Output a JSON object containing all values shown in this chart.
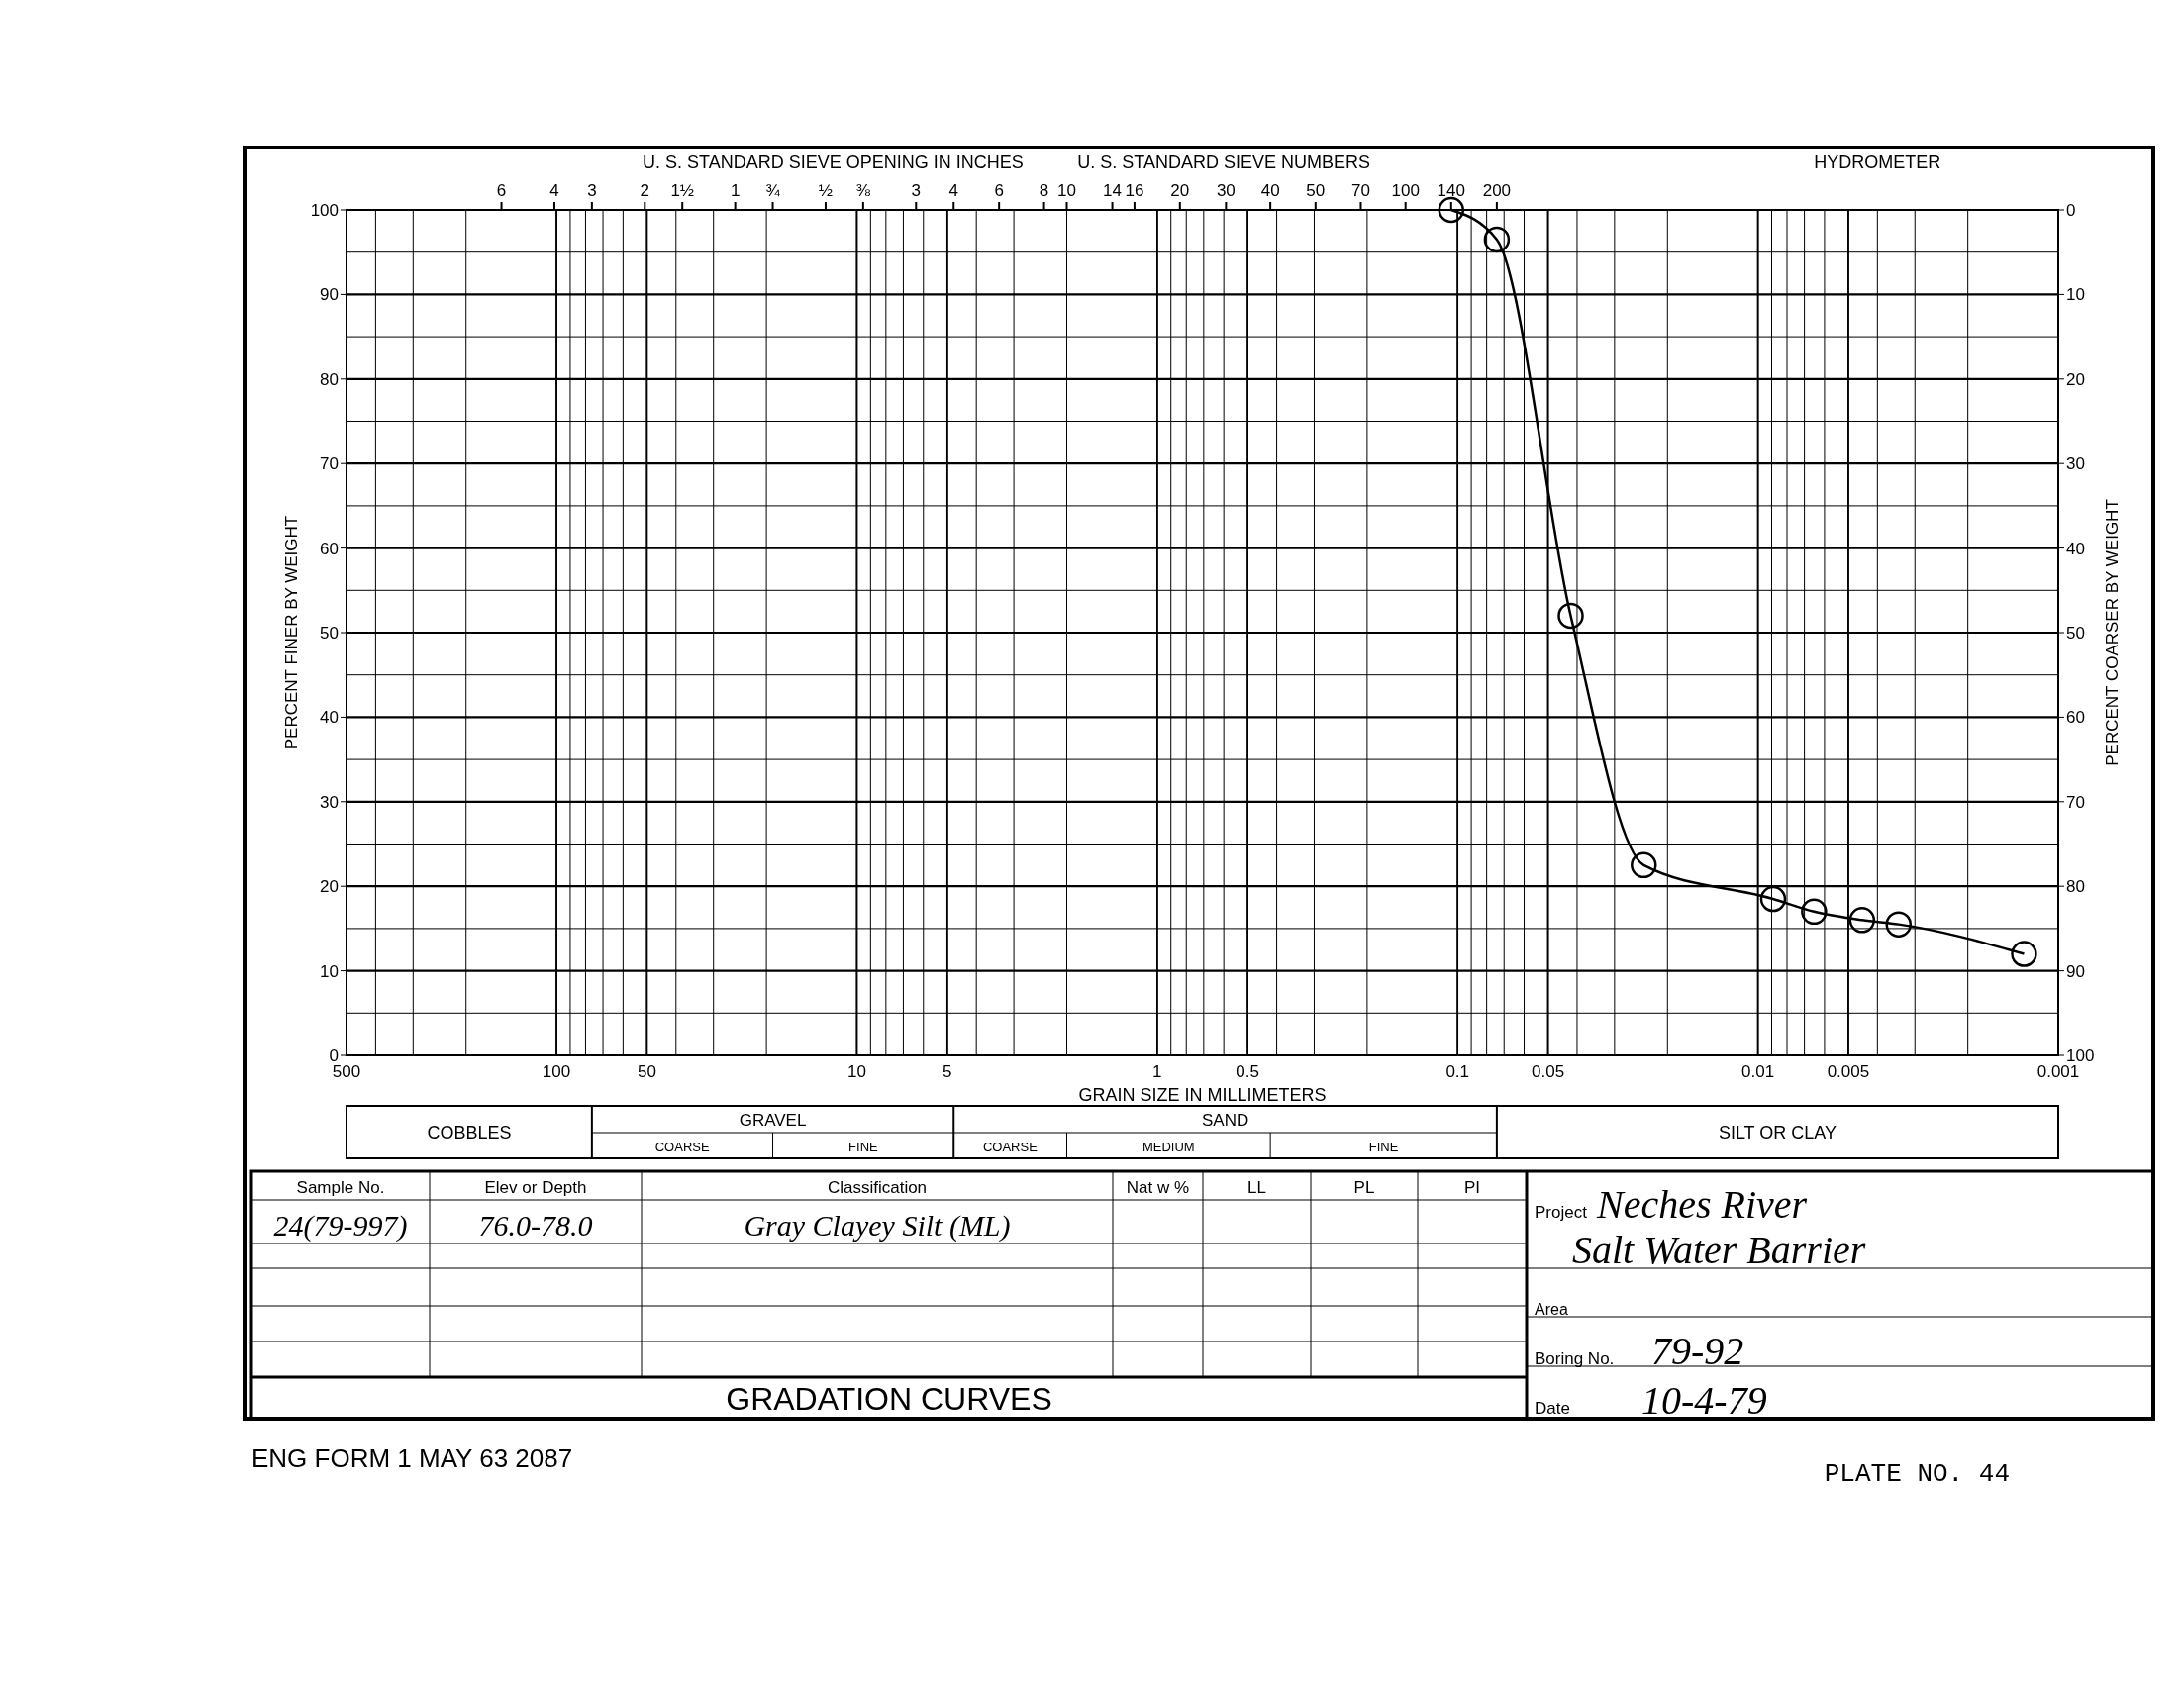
{
  "chart_data": {
    "type": "line",
    "xlabel": "GRAIN SIZE IN MILLIMETERS",
    "ylabel": "PERCENT FINER BY WEIGHT",
    "y2label": "PERCENT COARSER BY WEIGHT",
    "log": "x",
    "xlim": [
      500,
      0.001
    ],
    "xticks": [
      500,
      100,
      50,
      10,
      5,
      1,
      0.5,
      0.1,
      0.05,
      0.01,
      0.005,
      0.001
    ],
    "ylim": [
      0,
      100
    ],
    "yticks": [
      0,
      10,
      20,
      30,
      40,
      50,
      60,
      70,
      80,
      90,
      100
    ],
    "y2lim": [
      100,
      0
    ],
    "y2ticks": [
      0,
      10,
      20,
      30,
      40,
      50,
      60,
      70,
      80,
      90,
      100
    ],
    "grid": true,
    "marker": "circle",
    "line_style": "solid",
    "series": [
      {
        "color": "#000000",
        "x": [
          0.105,
          0.074,
          0.042,
          0.024,
          0.0089,
          0.0065,
          0.0045,
          0.0034,
          0.0013
        ],
        "values": [
          100,
          96.5,
          52,
          22.5,
          18.5,
          17,
          16,
          15.5,
          12
        ]
      }
    ],
    "annotations": [
      "U. S. STANDARD SIEVE OPENING IN INCHES",
      "U. S. STANDARD SIEVE NUMBERS",
      "HYDROMETER",
      "COBBLES",
      "GRAVEL",
      "COARSE",
      "FINE",
      "SAND",
      "COARSE",
      "MEDIUM",
      "FINE",
      "SILT OR CLAY",
      "Sample No.",
      "Elev or Depth",
      "Classification",
      "Nat w %",
      "LL",
      "PL",
      "PI",
      "24(79-997)",
      "76.0-78.0",
      "Gray Clayey Silt (ML)",
      "Project",
      "Neches River",
      "Salt Water Barrier",
      "Area",
      "Boring No.",
      "79-92",
      "Date",
      "10-4-79",
      "GRADATION CURVES",
      "ENG FORM 1 MAY 63 2087",
      "PLATE NO. 44",
      "3",
      "4",
      "6",
      "8",
      "10",
      "14",
      "16",
      "20",
      "30",
      "40",
      "50",
      "70",
      "100",
      "140",
      "200",
      "6",
      "4",
      "3",
      "2",
      "1½",
      "1",
      "¾",
      "½",
      "⅜"
    ]
  }
}
